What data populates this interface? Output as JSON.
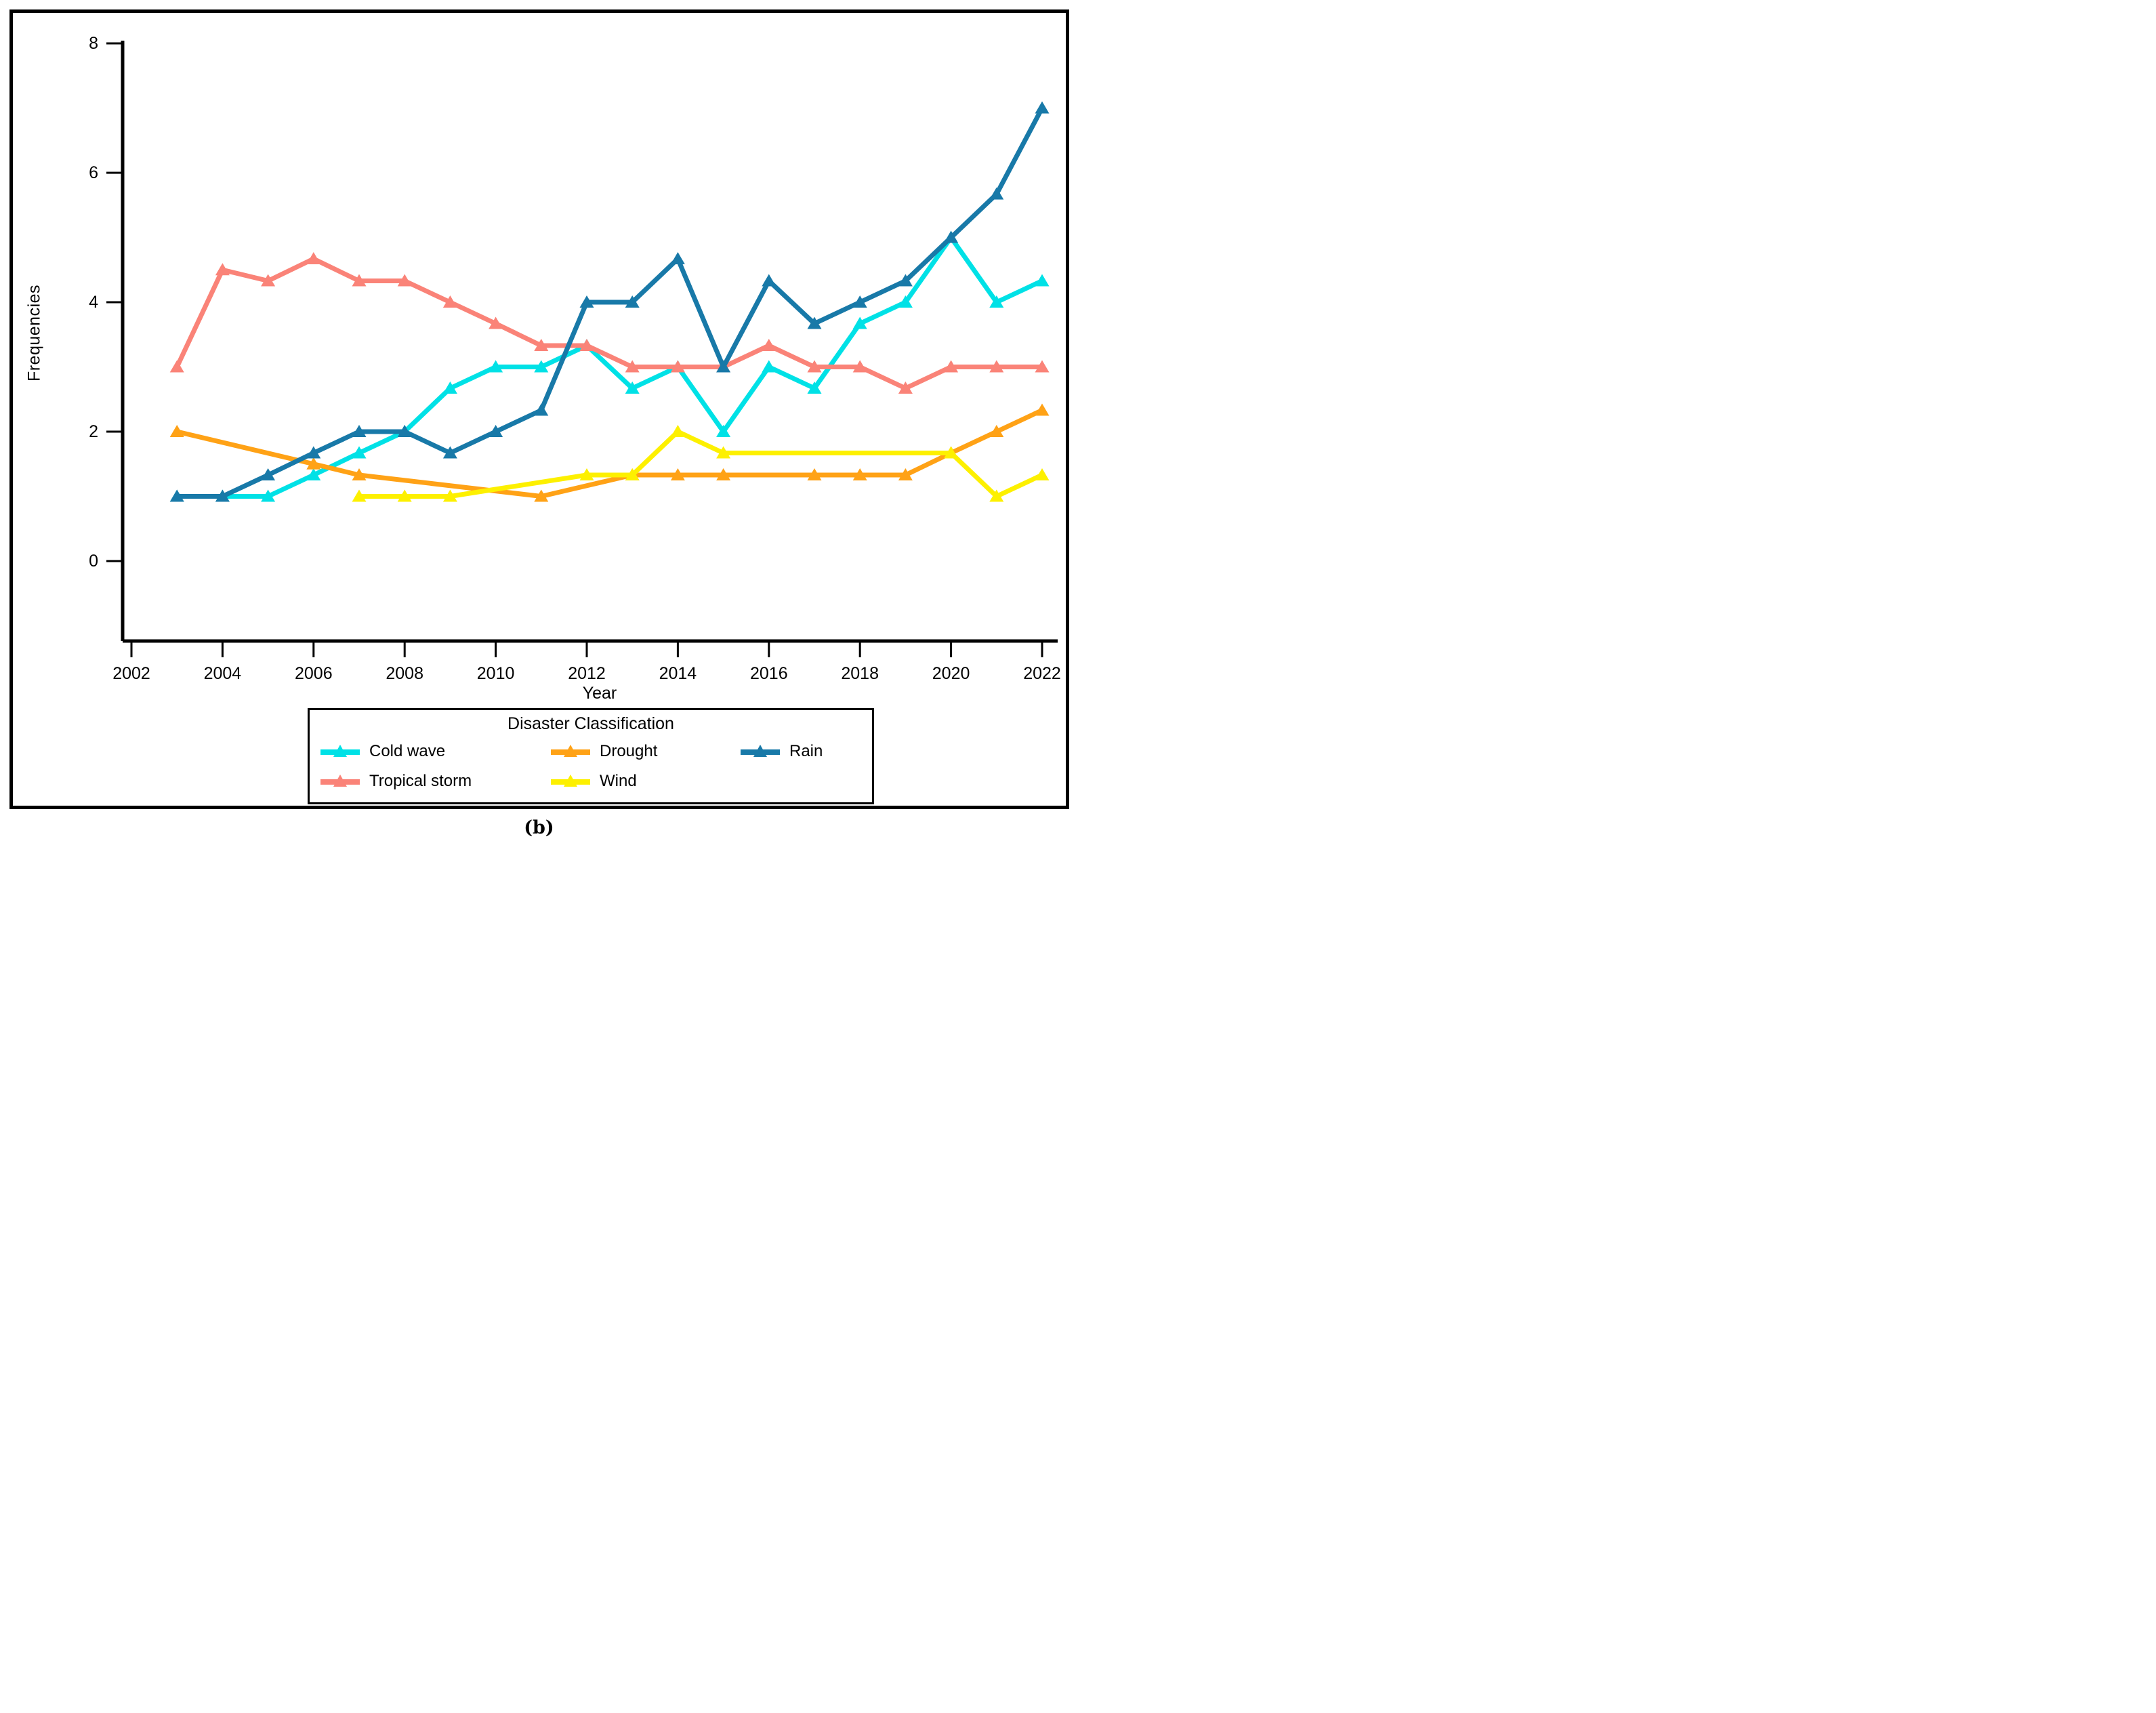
{
  "figure": {
    "caption": "(b)"
  },
  "chart_data": {
    "type": "line",
    "title": "",
    "xlabel": "Year",
    "ylabel": "Frequencies",
    "legend_title": "Disaster Classification",
    "legend_position": "bottom",
    "grid": false,
    "xlim": [
      2002,
      2022
    ],
    "ylim": [
      0,
      8
    ],
    "x_ticks": [
      2002,
      2004,
      2006,
      2008,
      2010,
      2012,
      2014,
      2016,
      2018,
      2020,
      2022
    ],
    "y_ticks": [
      0,
      2,
      4,
      6,
      8
    ],
    "years": [
      2003,
      2004,
      2005,
      2006,
      2007,
      2008,
      2009,
      2010,
      2011,
      2012,
      2013,
      2014,
      2015,
      2016,
      2017,
      2018,
      2019,
      2020,
      2021,
      2022
    ],
    "series": [
      {
        "name": "Cold wave",
        "color": "#00e1e6",
        "z": 1,
        "values": [
          1,
          1,
          1,
          1.33,
          1.67,
          2,
          2.67,
          3,
          3,
          3.33,
          2.67,
          3,
          2,
          3,
          2.67,
          3.67,
          4,
          5,
          4,
          4.33
        ]
      },
      {
        "name": "Drought",
        "color": "#ffa216",
        "z": 2,
        "values": [
          2,
          null,
          null,
          1.5,
          1.33,
          null,
          null,
          null,
          1,
          null,
          1.33,
          1.33,
          1.33,
          null,
          1.33,
          1.33,
          1.33,
          1.67,
          2,
          2.33
        ]
      },
      {
        "name": "Rain",
        "color": "#1879a8",
        "z": 5,
        "values": [
          1,
          1,
          1.33,
          1.67,
          2,
          2,
          1.67,
          2,
          2.33,
          4,
          4,
          4.67,
          3,
          4.33,
          3.67,
          4,
          4.33,
          5,
          5.67,
          7
        ]
      },
      {
        "name": "Tropical storm",
        "color": "#fa8378",
        "z": 4,
        "values": [
          3,
          4.5,
          4.33,
          4.67,
          4.33,
          4.33,
          4,
          3.67,
          3.33,
          3.33,
          3,
          3,
          3,
          3.33,
          3,
          3,
          2.67,
          3,
          3,
          3
        ]
      },
      {
        "name": "Wind",
        "color": "#fdf000",
        "z": 3,
        "values": [
          null,
          null,
          null,
          null,
          1,
          1,
          1,
          null,
          null,
          1.33,
          1.33,
          2,
          1.67,
          null,
          null,
          null,
          null,
          1.67,
          1,
          1.33
        ]
      }
    ]
  }
}
